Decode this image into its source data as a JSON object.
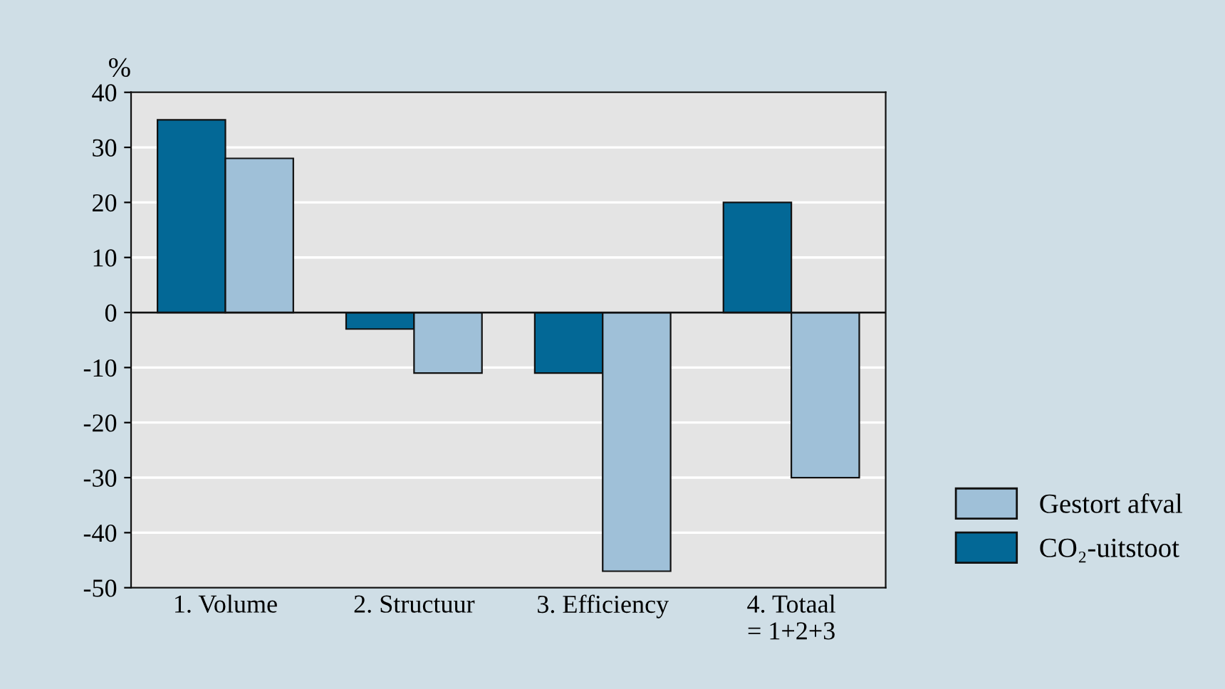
{
  "chart_data": {
    "type": "bar",
    "ylabel": "%",
    "categories": [
      "1. Volume",
      "2. Structuur",
      "3. Efficiency",
      "4. Totaal\n= 1+2+3"
    ],
    "series": [
      {
        "name": "CO₂-uitstoot",
        "color": "#036896",
        "values": [
          35,
          -3,
          -11,
          20
        ]
      },
      {
        "name": "Gestort afval",
        "color": "#9fc0d8",
        "values": [
          28,
          -11,
          -47,
          -30
        ]
      }
    ],
    "ylim": [
      -50,
      40
    ],
    "yticks": [
      -50,
      -40,
      -30,
      -20,
      -10,
      0,
      10,
      20,
      30,
      40
    ],
    "grid": "y",
    "legend": "bottom right"
  }
}
